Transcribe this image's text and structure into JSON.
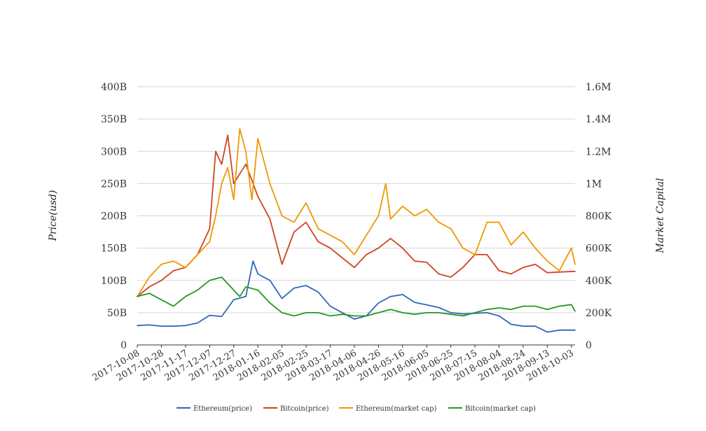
{
  "chart_data": {
    "type": "line",
    "x_ticks": [
      "2017-10-08",
      "2017-10-28",
      "2017-11-17",
      "2017-12-07",
      "2017-12-27",
      "2018-01-16",
      "2018-02-05",
      "2018-02-25",
      "2018-03-17",
      "2018-04-06",
      "2018-04-26",
      "2018-05-16",
      "2018-06-05",
      "2018-06-25",
      "2018-07-15",
      "2018-08-04",
      "2018-08-24",
      "2018-09-13",
      "2018-10-03"
    ],
    "xlim": [
      "2017-10-08",
      "2018-10-06"
    ],
    "ylabel": "Price(usd)",
    "y2label": "Market Capital",
    "yticks": [
      "0",
      "50B",
      "100B",
      "150B",
      "200B",
      "250B",
      "300B",
      "350B",
      "400B"
    ],
    "y2ticks": [
      "0",
      "200K",
      "400K",
      "600K",
      "800K",
      "1M",
      "1.2M",
      "1.4M",
      "1.6M"
    ],
    "ylim": [
      0,
      400
    ],
    "y_unit": "B",
    "y2lim": [
      0,
      1600
    ],
    "y2_unit": "K",
    "grid": true,
    "legend_position": "bottom",
    "series": [
      {
        "name": "Ethereum(price)",
        "axis": "left",
        "color": "#3366bb",
        "x": [
          "2017-10-08",
          "2017-10-18",
          "2017-10-28",
          "2017-11-07",
          "2017-11-17",
          "2017-11-27",
          "2017-12-07",
          "2017-12-17",
          "2017-12-27",
          "2018-01-06",
          "2018-01-12",
          "2018-01-16",
          "2018-01-26",
          "2018-02-05",
          "2018-02-15",
          "2018-02-25",
          "2018-03-07",
          "2018-03-17",
          "2018-03-27",
          "2018-04-06",
          "2018-04-16",
          "2018-04-26",
          "2018-05-06",
          "2018-05-16",
          "2018-05-26",
          "2018-06-05",
          "2018-06-15",
          "2018-06-25",
          "2018-07-05",
          "2018-07-15",
          "2018-07-25",
          "2018-08-04",
          "2018-08-14",
          "2018-08-24",
          "2018-09-03",
          "2018-09-13",
          "2018-09-23",
          "2018-10-06"
        ],
        "y": [
          30,
          31,
          29,
          29,
          30,
          34,
          46,
          44,
          70,
          75,
          130,
          110,
          100,
          72,
          88,
          92,
          82,
          60,
          50,
          40,
          45,
          65,
          75,
          78,
          66,
          62,
          58,
          50,
          48,
          49,
          50,
          45,
          32,
          29,
          29,
          20,
          23,
          23
        ]
      },
      {
        "name": "Bitcoin(price)",
        "axis": "left",
        "color": "#cc4422",
        "x": [
          "2017-10-08",
          "2017-10-18",
          "2017-10-28",
          "2017-11-07",
          "2017-11-17",
          "2017-11-27",
          "2017-12-07",
          "2017-12-12",
          "2017-12-17",
          "2017-12-22",
          "2017-12-27",
          "2018-01-06",
          "2018-01-16",
          "2018-01-26",
          "2018-02-05",
          "2018-02-15",
          "2018-02-25",
          "2018-03-07",
          "2018-03-17",
          "2018-03-27",
          "2018-04-06",
          "2018-04-16",
          "2018-04-26",
          "2018-05-06",
          "2018-05-16",
          "2018-05-26",
          "2018-06-05",
          "2018-06-15",
          "2018-06-25",
          "2018-07-05",
          "2018-07-15",
          "2018-07-25",
          "2018-08-04",
          "2018-08-14",
          "2018-08-24",
          "2018-09-03",
          "2018-09-13",
          "2018-09-23",
          "2018-10-06"
        ],
        "y": [
          75,
          90,
          100,
          115,
          120,
          140,
          180,
          300,
          280,
          325,
          250,
          280,
          230,
          195,
          125,
          175,
          190,
          160,
          150,
          135,
          120,
          140,
          150,
          165,
          150,
          130,
          128,
          110,
          105,
          120,
          140,
          140,
          115,
          110,
          120,
          125,
          112,
          113,
          114
        ]
      },
      {
        "name": "Ethereum(market cap)",
        "axis": "right",
        "color": "#ee9900",
        "x": [
          "2017-10-08",
          "2017-10-18",
          "2017-10-28",
          "2017-11-07",
          "2017-11-17",
          "2017-11-27",
          "2017-12-07",
          "2017-12-12",
          "2017-12-17",
          "2017-12-22",
          "2017-12-27",
          "2018-01-01",
          "2018-01-06",
          "2018-01-11",
          "2018-01-16",
          "2018-01-26",
          "2018-02-05",
          "2018-02-15",
          "2018-02-25",
          "2018-03-07",
          "2018-03-17",
          "2018-03-27",
          "2018-04-06",
          "2018-04-16",
          "2018-04-26",
          "2018-05-02",
          "2018-05-06",
          "2018-05-16",
          "2018-05-26",
          "2018-06-05",
          "2018-06-15",
          "2018-06-25",
          "2018-07-05",
          "2018-07-15",
          "2018-07-25",
          "2018-08-04",
          "2018-08-14",
          "2018-08-24",
          "2018-09-03",
          "2018-09-13",
          "2018-09-23",
          "2018-10-03",
          "2018-10-06"
        ],
        "y": [
          300,
          420,
          500,
          520,
          480,
          560,
          640,
          800,
          1000,
          1100,
          900,
          1340,
          1200,
          900,
          1280,
          1000,
          800,
          760,
          880,
          720,
          680,
          640,
          560,
          680,
          800,
          1000,
          780,
          860,
          800,
          840,
          760,
          720,
          600,
          560,
          760,
          760,
          620,
          700,
          600,
          520,
          460,
          600,
          500
        ]
      },
      {
        "name": "Bitcoin(market cap)",
        "axis": "right",
        "color": "#229922",
        "x": [
          "2017-10-08",
          "2017-10-18",
          "2017-10-28",
          "2017-11-07",
          "2017-11-17",
          "2017-11-27",
          "2017-12-07",
          "2017-12-17",
          "2017-12-27",
          "2018-01-01",
          "2018-01-06",
          "2018-01-16",
          "2018-01-26",
          "2018-02-05",
          "2018-02-15",
          "2018-02-25",
          "2018-03-07",
          "2018-03-17",
          "2018-03-27",
          "2018-04-06",
          "2018-04-16",
          "2018-04-26",
          "2018-05-06",
          "2018-05-16",
          "2018-05-26",
          "2018-06-05",
          "2018-06-15",
          "2018-06-25",
          "2018-07-05",
          "2018-07-15",
          "2018-07-25",
          "2018-08-04",
          "2018-08-14",
          "2018-08-24",
          "2018-09-03",
          "2018-09-13",
          "2018-09-23",
          "2018-10-03",
          "2018-10-06"
        ],
        "y": [
          300,
          320,
          280,
          240,
          300,
          340,
          400,
          420,
          340,
          300,
          360,
          340,
          260,
          200,
          180,
          200,
          200,
          180,
          190,
          180,
          180,
          200,
          220,
          200,
          190,
          200,
          200,
          190,
          180,
          200,
          220,
          230,
          220,
          240,
          240,
          220,
          240,
          250,
          210
        ]
      }
    ]
  }
}
